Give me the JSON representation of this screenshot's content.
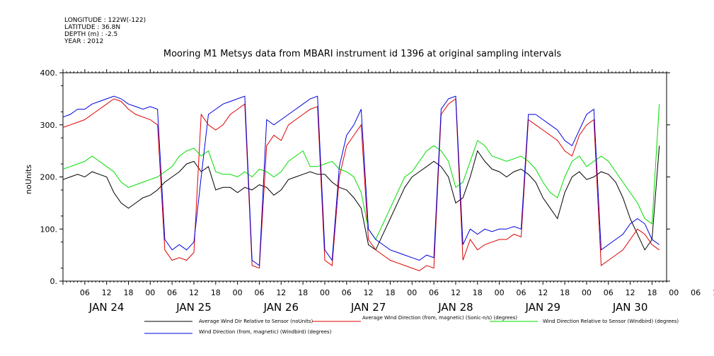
{
  "header": {
    "longitude": "LONGITUDE : 122W(-122)",
    "latitude": "LATITUDE : 36.8N",
    "depth": "DEPTH (m) : -2.5",
    "year": "YEAR : 2012"
  },
  "chart_data": {
    "type": "line",
    "title": "Mooring M1 Metsys data from MBARI instrument id 1396 at original sampling intervals",
    "ylabel": "noUnits",
    "ylim": [
      0,
      400
    ],
    "yticks": [
      "0.",
      "100.",
      "200.",
      "300.",
      "400."
    ],
    "xlim_hours": [
      0,
      166
    ],
    "hour_ticks": [
      "06",
      "12",
      "18",
      "00",
      "06",
      "12",
      "18",
      "00",
      "06",
      "12",
      "18",
      "00",
      "06",
      "12",
      "18",
      "00",
      "06",
      "12",
      "18",
      "00",
      "06",
      "12",
      "18",
      "00",
      "06",
      "12",
      "18",
      "00",
      "06",
      "12",
      "18"
    ],
    "day_labels": [
      "JAN 24",
      "JAN 25",
      "JAN 26",
      "JAN 27",
      "JAN 28",
      "JAN 29",
      "JAN 30"
    ],
    "legend_placement": "bottom",
    "series": [
      {
        "name": "Average Wind Dir Relative to Sensor (noUnits)",
        "color": "#000000",
        "x": [
          0,
          2,
          4,
          6,
          8,
          10,
          12,
          14,
          16,
          18,
          20,
          22,
          24,
          26,
          28,
          30,
          32,
          34,
          36,
          38,
          40,
          42,
          44,
          46,
          48,
          50,
          52,
          54,
          56,
          58,
          60,
          62,
          64,
          66,
          68,
          70,
          72,
          74,
          76,
          78,
          80,
          82,
          84,
          86,
          88,
          90,
          92,
          94,
          96,
          98,
          100,
          102,
          104,
          106,
          108,
          110,
          112,
          114,
          116,
          118,
          120,
          122,
          124,
          126,
          128,
          130,
          132,
          134,
          136,
          138,
          140,
          142,
          144,
          146,
          148,
          150,
          152,
          154,
          156,
          158,
          160,
          162,
          164
        ],
        "y": [
          195,
          200,
          205,
          200,
          210,
          205,
          200,
          170,
          150,
          140,
          150,
          160,
          165,
          175,
          190,
          200,
          210,
          225,
          230,
          210,
          220,
          175,
          180,
          180,
          170,
          180,
          175,
          185,
          180,
          165,
          175,
          195,
          200,
          205,
          210,
          205,
          205,
          190,
          180,
          175,
          160,
          140,
          70,
          60,
          90,
          120,
          150,
          180,
          200,
          210,
          220,
          230,
          220,
          200,
          150,
          160,
          200,
          250,
          230,
          215,
          210,
          200,
          210,
          215,
          205,
          190,
          160,
          140,
          120,
          170,
          200,
          210,
          195,
          200,
          210,
          205,
          190,
          160,
          120,
          90,
          60,
          80,
          260
        ]
      },
      {
        "name": "Average Wind Direction (from, magnetic) (Sonic-n/s) (degrees)",
        "color": "#dd0000",
        "x": [
          0,
          2,
          4,
          6,
          8,
          10,
          12,
          14,
          16,
          18,
          20,
          22,
          24,
          26,
          28,
          30,
          32,
          34,
          36,
          38,
          40,
          42,
          44,
          46,
          48,
          50,
          52,
          54,
          56,
          58,
          60,
          62,
          64,
          66,
          68,
          70,
          72,
          74,
          76,
          78,
          80,
          82,
          84,
          86,
          88,
          90,
          92,
          94,
          96,
          98,
          100,
          102,
          104,
          106,
          108,
          110,
          112,
          114,
          116,
          118,
          120,
          122,
          124,
          126,
          128,
          130,
          132,
          134,
          136,
          138,
          140,
          142,
          144,
          146,
          148,
          150,
          152,
          154,
          156,
          158,
          160,
          162,
          164
        ],
        "y": [
          295,
          300,
          305,
          310,
          320,
          330,
          340,
          350,
          345,
          330,
          320,
          315,
          310,
          300,
          60,
          40,
          45,
          40,
          55,
          320,
          300,
          290,
          300,
          320,
          330,
          340,
          30,
          25,
          260,
          280,
          270,
          300,
          310,
          320,
          330,
          335,
          40,
          30,
          200,
          260,
          280,
          300,
          80,
          60,
          50,
          40,
          35,
          30,
          25,
          20,
          30,
          25,
          320,
          340,
          350,
          40,
          80,
          60,
          70,
          75,
          80,
          80,
          90,
          85,
          310,
          300,
          290,
          280,
          270,
          250,
          240,
          280,
          300,
          310,
          30,
          40,
          50,
          60,
          80,
          100,
          90,
          70,
          60
        ]
      },
      {
        "name": "Wind Direction Relative to Sensor (Windbird) (degrees)",
        "color": "#00dd00",
        "x": [
          0,
          2,
          4,
          6,
          8,
          10,
          12,
          14,
          16,
          18,
          20,
          22,
          24,
          26,
          28,
          30,
          32,
          34,
          36,
          38,
          40,
          42,
          44,
          46,
          48,
          50,
          52,
          54,
          56,
          58,
          60,
          62,
          64,
          66,
          68,
          70,
          72,
          74,
          76,
          78,
          80,
          82,
          84,
          86,
          88,
          90,
          92,
          94,
          96,
          98,
          100,
          102,
          104,
          106,
          108,
          110,
          112,
          114,
          116,
          118,
          120,
          122,
          124,
          126,
          128,
          130,
          132,
          134,
          136,
          138,
          140,
          142,
          144,
          146,
          148,
          150,
          152,
          154,
          156,
          158,
          160,
          162,
          164
        ],
        "y": [
          215,
          220,
          225,
          230,
          240,
          230,
          220,
          210,
          190,
          180,
          185,
          190,
          195,
          200,
          210,
          220,
          240,
          250,
          255,
          240,
          250,
          210,
          205,
          205,
          200,
          210,
          200,
          215,
          210,
          200,
          210,
          230,
          240,
          250,
          220,
          220,
          225,
          230,
          215,
          210,
          200,
          170,
          100,
          80,
          110,
          140,
          170,
          200,
          210,
          230,
          250,
          260,
          250,
          230,
          180,
          190,
          230,
          270,
          260,
          240,
          235,
          230,
          235,
          240,
          230,
          215,
          190,
          170,
          160,
          200,
          230,
          240,
          220,
          230,
          240,
          230,
          210,
          190,
          170,
          150,
          120,
          110,
          340
        ]
      },
      {
        "name": "Wind Direction (from, magnetic) (Windbird) (degrees)",
        "color": "#0000dd",
        "x": [
          0,
          2,
          4,
          6,
          8,
          10,
          12,
          14,
          16,
          18,
          20,
          22,
          24,
          26,
          28,
          30,
          32,
          34,
          36,
          38,
          40,
          42,
          44,
          46,
          48,
          50,
          52,
          54,
          56,
          58,
          60,
          62,
          64,
          66,
          68,
          70,
          72,
          74,
          76,
          78,
          80,
          82,
          84,
          86,
          88,
          90,
          92,
          94,
          96,
          98,
          100,
          102,
          104,
          106,
          108,
          110,
          112,
          114,
          116,
          118,
          120,
          122,
          124,
          126,
          128,
          130,
          132,
          134,
          136,
          138,
          140,
          142,
          144,
          146,
          148,
          150,
          152,
          154,
          156,
          158,
          160,
          162,
          164
        ],
        "y": [
          315,
          320,
          330,
          330,
          340,
          345,
          350,
          355,
          350,
          340,
          335,
          330,
          335,
          330,
          80,
          60,
          70,
          60,
          75,
          200,
          320,
          330,
          340,
          345,
          350,
          355,
          40,
          30,
          310,
          300,
          310,
          320,
          330,
          340,
          350,
          355,
          60,
          40,
          220,
          280,
          300,
          330,
          100,
          80,
          70,
          60,
          55,
          50,
          45,
          40,
          50,
          45,
          330,
          350,
          355,
          70,
          100,
          90,
          100,
          95,
          100,
          100,
          105,
          100,
          320,
          320,
          310,
          300,
          290,
          270,
          260,
          290,
          320,
          330,
          60,
          70,
          80,
          90,
          110,
          120,
          110,
          80,
          70
        ]
      }
    ]
  }
}
